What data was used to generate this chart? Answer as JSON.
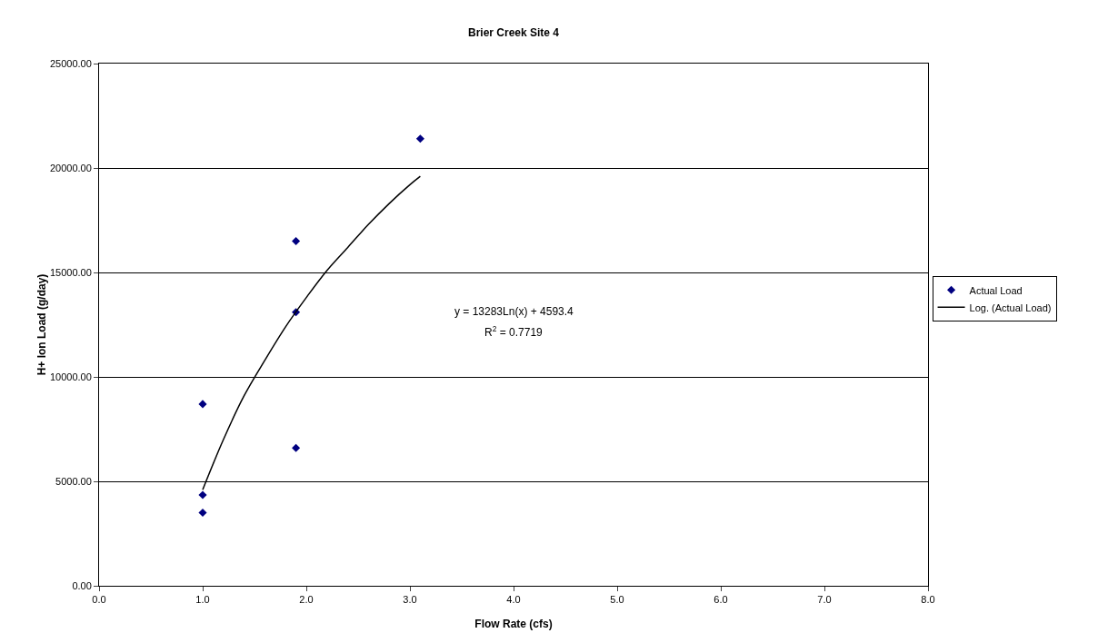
{
  "chart_data": {
    "type": "scatter",
    "title": "Brier Creek Site 4",
    "xlabel": "Flow Rate (cfs)",
    "ylabel": "H+ Ion Load (g/day)",
    "xlim": [
      0,
      8
    ],
    "xticks": [
      {
        "value": 0,
        "label": "0.0"
      },
      {
        "value": 1,
        "label": "1.0"
      },
      {
        "value": 2,
        "label": "2.0"
      },
      {
        "value": 3,
        "label": "3.0"
      },
      {
        "value": 4,
        "label": "4.0"
      },
      {
        "value": 5,
        "label": "5.0"
      },
      {
        "value": 6,
        "label": "6.0"
      },
      {
        "value": 7,
        "label": "7.0"
      },
      {
        "value": 8,
        "label": "8.0"
      }
    ],
    "ylim": [
      0,
      25000
    ],
    "yticks": [
      {
        "value": 0,
        "label": "0.00"
      },
      {
        "value": 5000,
        "label": "5000.00"
      },
      {
        "value": 10000,
        "label": "10000.00"
      },
      {
        "value": 15000,
        "label": "15000.00"
      },
      {
        "value": 20000,
        "label": "20000.00"
      },
      {
        "value": 25000,
        "label": "25000.00"
      }
    ],
    "grid": "y",
    "legend": "right",
    "series": [
      {
        "name": "Actual Load",
        "marker": "diamond",
        "color": "#000080",
        "x": [
          1.0,
          1.0,
          1.0,
          1.9,
          1.9,
          1.9,
          3.1
        ],
        "values": [
          8700,
          4350,
          3500,
          16500,
          13100,
          6600,
          21400
        ]
      },
      {
        "name": "Log. (Actual Load)",
        "type": "line",
        "color": "#000000",
        "line_style": "solid",
        "marker": "none",
        "x": [
          1.0,
          1.2,
          1.4,
          1.6,
          1.8,
          2.0,
          2.2,
          2.4,
          2.6,
          2.8,
          3.0,
          3.1
        ],
        "values": [
          4600,
          7000,
          9100,
          10800,
          12400,
          13800,
          15100,
          16200,
          17300,
          18300,
          19200,
          19600
        ]
      }
    ],
    "annotations": [
      "y = 13283Ln(x) + 4593.4",
      "R$^{2}$ = 0.7719"
    ]
  }
}
